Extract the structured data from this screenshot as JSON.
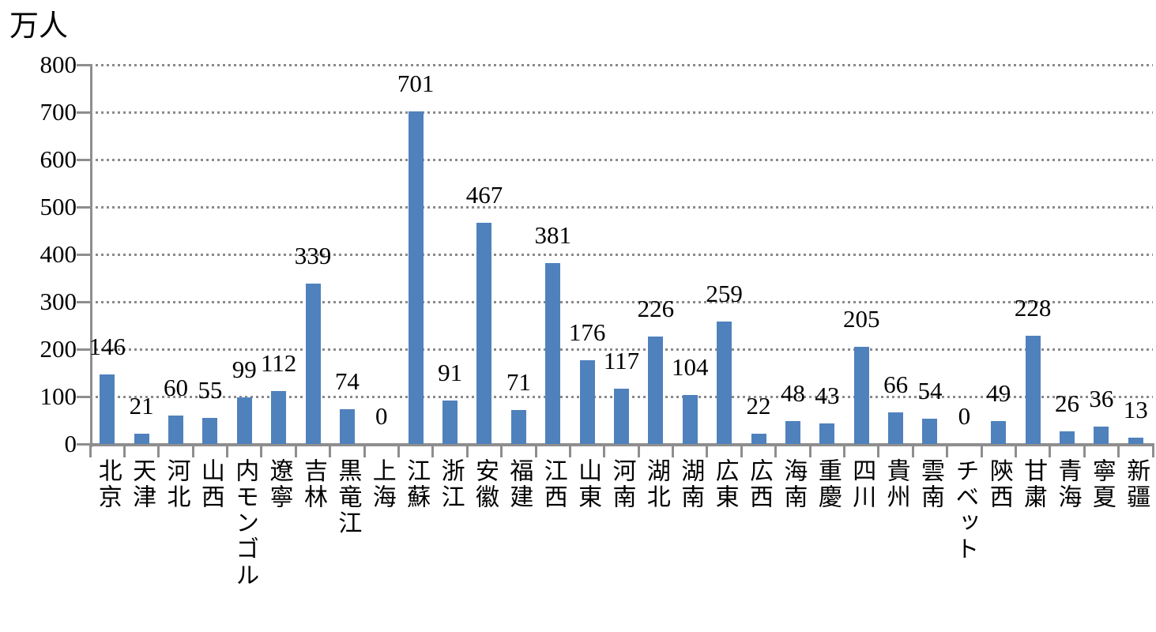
{
  "chart_data": {
    "type": "bar",
    "unit_label": "万人",
    "categories": [
      "北京",
      "天津",
      "河北",
      "山西",
      "内モンゴル",
      "遼寧",
      "吉林",
      "黒竜江",
      "上海",
      "江蘇",
      "浙江",
      "安徽",
      "福建",
      "江西",
      "山東",
      "河南",
      "湖北",
      "湖南",
      "広東",
      "広西",
      "海南",
      "重慶",
      "四川",
      "貴州",
      "雲南",
      "チベット",
      "陝西",
      "甘粛",
      "青海",
      "寧夏",
      "新疆"
    ],
    "values": [
      146,
      21,
      60,
      55,
      99,
      112,
      339,
      74,
      0,
      701,
      91,
      467,
      71,
      381,
      176,
      117,
      226,
      104,
      259,
      22,
      48,
      43,
      205,
      66,
      54,
      0,
      49,
      228,
      26,
      36,
      13
    ],
    "ylim": [
      0,
      800
    ],
    "ytick_step": 100,
    "yticks": [
      0,
      100,
      200,
      300,
      400,
      500,
      600,
      700,
      800
    ],
    "grid": "horizontal-dotted",
    "legend": "none",
    "data_labels": "outside-end",
    "colors": {
      "bar": "#4f81bd",
      "axis": "#8e8e8e",
      "grid": "#8a8a8a",
      "text": "#000000"
    }
  }
}
